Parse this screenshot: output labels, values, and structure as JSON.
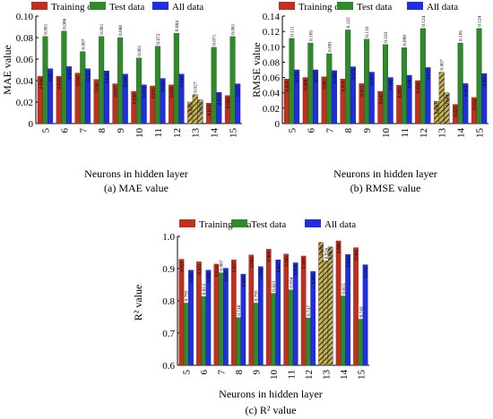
{
  "chart_data": [
    {
      "type": "bar",
      "categories": [
        "5",
        "6",
        "7",
        "8",
        "9",
        "10",
        "11",
        "12",
        "13",
        "14",
        "15"
      ],
      "series": [
        {
          "name": "Training data",
          "values": [
            0.044,
            0.044,
            0.047,
            0.041,
            0.037,
            0.03,
            0.035,
            0.036,
            0.02,
            0.019,
            0.026
          ]
        },
        {
          "name": "Test data",
          "values": [
            0.081,
            0.086,
            0.067,
            0.081,
            0.08,
            0.061,
            0.072,
            0.084,
            0.027,
            0.071,
            0.081
          ]
        },
        {
          "name": "All data",
          "values": [
            0.051,
            0.053,
            0.051,
            0.049,
            0.046,
            0.036,
            0.042,
            0.046,
            0.022,
            0.029,
            0.037
          ]
        }
      ],
      "labels": [
        [
          "0.044",
          "0.044",
          "0.047",
          "0.041",
          "0.037",
          "0.030",
          "0.035",
          "0.036",
          "0.020",
          "0.019",
          "0.026"
        ],
        [
          "0.081",
          "0.086",
          "0.067",
          "0.081",
          "0.080",
          "0.061",
          "0.072",
          "0.084",
          "0.027",
          "0.071",
          "0.081"
        ],
        [
          "0.051",
          "0.053",
          "0.051",
          "0.049",
          "0.046",
          "0.036",
          "0.042",
          "0.046",
          "0.022",
          "0.029",
          "0.037"
        ]
      ],
      "highlight_category": "13",
      "ylim": [
        0,
        0.1
      ],
      "yticks": [
        "0",
        "0.02",
        "0.04",
        "0.06",
        "0.08",
        "0.10"
      ],
      "ylabel": "MAE value",
      "xlabel": "Neurons in hidden layer",
      "caption": "(a) MAE value",
      "legend": "top"
    },
    {
      "type": "bar",
      "categories": [
        "5",
        "6",
        "7",
        "8",
        "9",
        "10",
        "11",
        "12",
        "13",
        "14",
        "15"
      ],
      "series": [
        {
          "name": "Training data",
          "values": [
            0.058,
            0.06,
            0.061,
            0.058,
            0.052,
            0.042,
            0.05,
            0.056,
            0.029,
            0.025,
            0.034
          ]
        },
        {
          "name": "Test data",
          "values": [
            0.111,
            0.105,
            0.091,
            0.122,
            0.11,
            0.103,
            0.099,
            0.124,
            0.067,
            0.105,
            0.124
          ]
        },
        {
          "name": "All data",
          "values": [
            0.07,
            0.07,
            0.069,
            0.074,
            0.067,
            0.06,
            0.063,
            0.073,
            0.04,
            0.052,
            0.065
          ]
        }
      ],
      "labels": [
        [
          "0.058",
          "0.060",
          "0.061",
          "0.058",
          "0.052",
          "0.042",
          "0.050",
          "0.056",
          "0.029",
          "0.025",
          "0.034"
        ],
        [
          "0.111",
          "0.105",
          "0.091",
          "0.122",
          "0.110",
          "0.103",
          "0.099",
          "0.124",
          "0.067",
          "0.105",
          "0.124"
        ],
        [
          "0.070",
          "0.070",
          "0.069",
          "0.074",
          "0.067",
          "0.060",
          "0.063",
          "0.073",
          "0.040",
          "0.052",
          "0.065"
        ]
      ],
      "highlight_category": "13",
      "ylim": [
        0,
        0.14
      ],
      "yticks": [
        "0",
        "0.02",
        "0.04",
        "0.06",
        "0.08",
        "0.10",
        "0.12",
        "0.14"
      ],
      "ylabel": "RMSE value",
      "xlabel": "Neurons in hidden layer",
      "caption": "(b) RMSE value",
      "legend": "top"
    },
    {
      "type": "bar",
      "categories": [
        "5",
        "6",
        "7",
        "8",
        "9",
        "10",
        "11",
        "12",
        "13",
        "14",
        "15"
      ],
      "series": [
        {
          "name": "Training data",
          "values": [
            0.929,
            0.921,
            0.914,
            0.927,
            0.942,
            0.96,
            0.945,
            0.939,
            0.981,
            0.986,
            0.965
          ]
        },
        {
          "name": "Test data",
          "values": [
            0.793,
            0.813,
            0.887,
            0.748,
            0.793,
            0.823,
            0.834,
            0.747,
            0.924,
            0.815,
            0.743
          ]
        },
        {
          "name": "All data",
          "values": [
            0.895,
            0.895,
            0.901,
            0.883,
            0.906,
            0.927,
            0.918,
            0.891,
            0.967,
            0.944,
            0.912
          ]
        }
      ],
      "labels": [
        [
          "0.929",
          "0.921",
          "0.914",
          "0.927",
          "0.942",
          "0.960",
          "0.945",
          "0.939",
          "0.981",
          "0.986",
          "0.965"
        ],
        [
          "0.793",
          "0.813",
          "0.887",
          "0.748",
          "0.793",
          "0.823",
          "0.834",
          "0.747",
          "0.924",
          "0.815",
          "0.743"
        ],
        [
          "0.895",
          "0.895",
          "0.901",
          "0.883",
          "0.906",
          "0.927",
          "0.918",
          "0.891",
          "0.967",
          "0.944",
          "0.912"
        ]
      ],
      "highlight_category": "13",
      "ylim": [
        0.6,
        1.0
      ],
      "yticks": [
        "0.6",
        "0.7",
        "0.8",
        "0.9",
        "1.0"
      ],
      "ylabel": "R² value",
      "xlabel": "Neurons in hidden layer",
      "caption": "(c) R² value",
      "legend": "top"
    }
  ],
  "colors": {
    "training": "#c0301f",
    "training_dark": "#8b1e12",
    "test": "#2f8a2a",
    "test_dark": "#1a5718",
    "all": "#1f2fe0",
    "all_dark": "#10158a"
  }
}
